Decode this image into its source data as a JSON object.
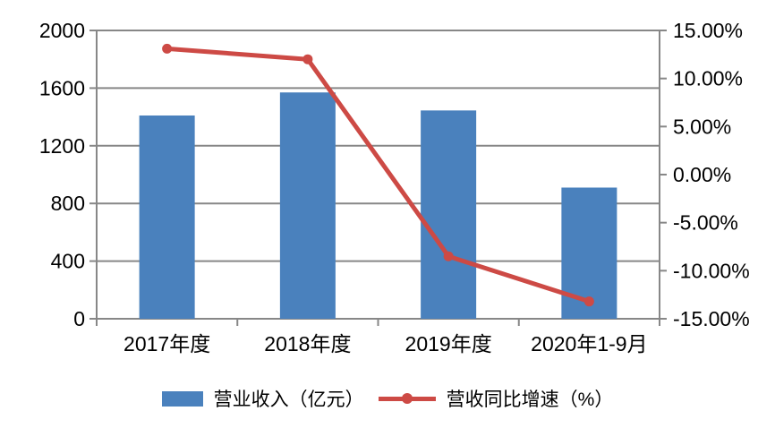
{
  "chart_data": {
    "type": "bar+line combo",
    "title": "",
    "categories": [
      "2017年度",
      "2018年度",
      "2019年度",
      "2020年1-9月"
    ],
    "series": [
      {
        "name": "营业收入（亿元）",
        "type": "bar",
        "axis": "left",
        "values": [
          1410,
          1570,
          1445,
          910
        ],
        "color": "#4a81bd"
      },
      {
        "name": "营收同比增速（%）",
        "type": "line",
        "axis": "right",
        "values": [
          13.1,
          12.0,
          -8.5,
          -13.2
        ],
        "color": "#cd4a45"
      }
    ],
    "left_axis": {
      "min": 0,
      "max": 2000,
      "step": 400,
      "tick_labels": [
        "0",
        "400",
        "800",
        "1200",
        "1600",
        "2000"
      ]
    },
    "right_axis": {
      "min": -15,
      "max": 15,
      "step": 5,
      "tick_labels": [
        "-15.00%",
        "-10.00%",
        "-5.00%",
        "0.00%",
        "5.00%",
        "10.00%",
        "15.00%"
      ]
    },
    "grid": true,
    "legend_position": "bottom",
    "colors": {
      "grid": "#878787",
      "axis": "#878787",
      "text": "#000000",
      "background": "#ffffff"
    }
  }
}
